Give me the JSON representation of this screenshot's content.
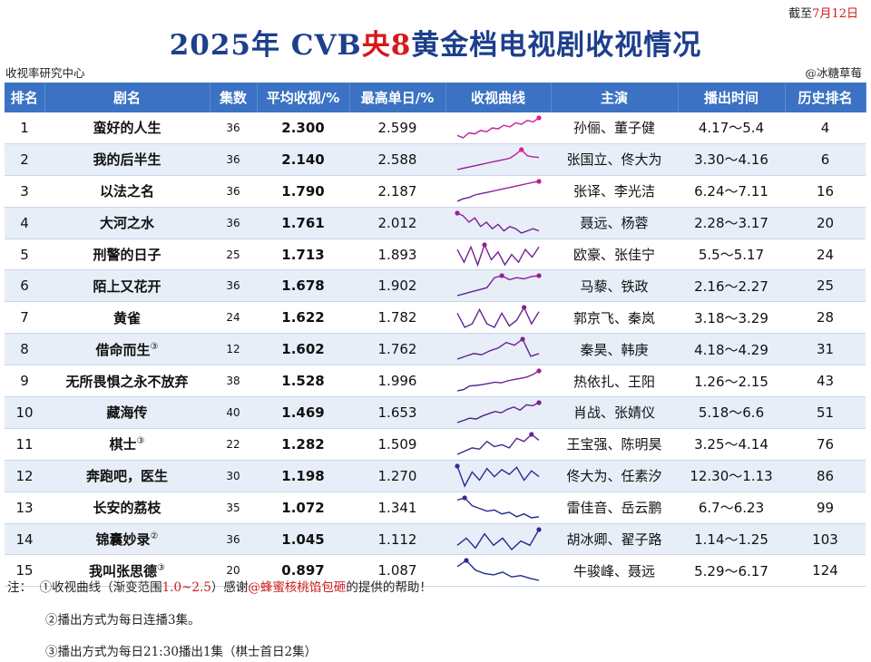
{
  "header": {
    "date_prefix": "截至",
    "date_value": "7月12日",
    "title_part1": "2025年 CVB",
    "title_part2": "央8",
    "title_part3": "黄金档电视剧收视情况",
    "source": "收视率研究中心",
    "credit": "@冰糖草莓"
  },
  "columns": [
    "排名",
    "剧名",
    "集数",
    "平均收视/%",
    "最高单日/%",
    "收视曲线",
    "主演",
    "播出时间",
    "历史排名"
  ],
  "colors": {
    "header_bg": "#3b72c4",
    "row_alt": "#e7eef8",
    "title_blue": "#1d3f8c",
    "accent_red": "#d7191c",
    "curve_high": "#e0189a",
    "curve_low": "#1a2a8a"
  },
  "rows": [
    {
      "rank": "1",
      "name": "蛮好的人生",
      "mark": "",
      "eps": "36",
      "avg": "2.300",
      "peak": "2.599",
      "cast": "孙俪、董子健",
      "time": "4.17～5.4",
      "hist": "4",
      "curve": [
        2.25,
        2.2,
        2.3,
        2.28,
        2.35,
        2.32,
        2.4,
        2.38,
        2.45,
        2.42,
        2.5,
        2.47,
        2.55,
        2.52,
        2.6
      ]
    },
    {
      "rank": "2",
      "name": "我的后半生",
      "mark": "",
      "eps": "36",
      "avg": "2.140",
      "peak": "2.588",
      "cast": "张国立、佟大为",
      "time": "3.30～4.16",
      "hist": "6",
      "curve": [
        1.8,
        1.85,
        1.9,
        1.95,
        2.0,
        2.05,
        2.1,
        2.15,
        2.2,
        2.25,
        2.4,
        2.59,
        2.35,
        2.3,
        2.28
      ]
    },
    {
      "rank": "3",
      "name": "以法之名",
      "mark": "",
      "eps": "36",
      "avg": "1.790",
      "peak": "2.187",
      "cast": "张译、李光洁",
      "time": "6.24～7.11",
      "hist": "16",
      "curve": [
        1.4,
        1.5,
        1.55,
        1.65,
        1.7,
        1.75,
        1.8,
        1.85,
        1.9,
        1.95,
        2.0,
        2.05,
        2.1,
        2.15,
        2.19
      ]
    },
    {
      "rank": "4",
      "name": "大河之水",
      "mark": "",
      "eps": "36",
      "avg": "1.761",
      "peak": "2.012",
      "cast": "聂远、杨蓉",
      "time": "2.28～3.17",
      "hist": "20",
      "curve": [
        2.01,
        1.95,
        1.8,
        1.9,
        1.7,
        1.8,
        1.65,
        1.75,
        1.6,
        1.7,
        1.65,
        1.55,
        1.6,
        1.65,
        1.6
      ]
    },
    {
      "rank": "5",
      "name": "刑警的日子",
      "mark": "",
      "eps": "25",
      "avg": "1.713",
      "peak": "1.893",
      "cast": "欧豪、张佳宁",
      "time": "5.5～5.17",
      "hist": "24",
      "curve": [
        1.8,
        1.55,
        1.85,
        1.5,
        1.89,
        1.6,
        1.75,
        1.5,
        1.7,
        1.55,
        1.8,
        1.65,
        1.85
      ]
    },
    {
      "rank": "6",
      "name": "陌上又花开",
      "mark": "",
      "eps": "36",
      "avg": "1.678",
      "peak": "1.902",
      "cast": "马藜、铁政",
      "time": "2.16～2.27",
      "hist": "25",
      "curve": [
        1.4,
        1.45,
        1.5,
        1.55,
        1.6,
        1.85,
        1.9,
        1.8,
        1.85,
        1.82,
        1.88,
        1.9
      ]
    },
    {
      "rank": "7",
      "name": "黄雀",
      "mark": "",
      "eps": "24",
      "avg": "1.622",
      "peak": "1.782",
      "cast": "郭京飞、秦岚",
      "time": "3.18～3.29",
      "hist": "28",
      "curve": [
        1.7,
        1.5,
        1.55,
        1.75,
        1.55,
        1.5,
        1.7,
        1.52,
        1.6,
        1.78,
        1.55,
        1.72
      ]
    },
    {
      "rank": "8",
      "name": "借命而生",
      "mark": "③",
      "eps": "12",
      "avg": "1.602",
      "peak": "1.762",
      "cast": "秦昊、韩庚",
      "time": "4.18～4.29",
      "hist": "31",
      "curve": [
        1.4,
        1.45,
        1.5,
        1.48,
        1.55,
        1.6,
        1.7,
        1.65,
        1.76,
        1.45,
        1.5
      ]
    },
    {
      "rank": "9",
      "name": "无所畏惧之永不放弃",
      "mark": "",
      "eps": "38",
      "avg": "1.528",
      "peak": "1.996",
      "cast": "热依扎、王阳",
      "time": "1.26～2.15",
      "hist": "43",
      "curve": [
        1.2,
        1.25,
        1.4,
        1.42,
        1.45,
        1.5,
        1.55,
        1.52,
        1.6,
        1.65,
        1.7,
        1.75,
        1.85,
        2.0
      ]
    },
    {
      "rank": "10",
      "name": "藏海传",
      "mark": "",
      "eps": "40",
      "avg": "1.469",
      "peak": "1.653",
      "cast": "肖战、张婧仪",
      "time": "5.18～6.6",
      "hist": "51",
      "curve": [
        1.2,
        1.25,
        1.3,
        1.28,
        1.35,
        1.4,
        1.45,
        1.42,
        1.5,
        1.55,
        1.48,
        1.6,
        1.58,
        1.65
      ]
    },
    {
      "rank": "11",
      "name": "棋士",
      "mark": "③",
      "eps": "22",
      "avg": "1.282",
      "peak": "1.509",
      "cast": "王宝强、陈明昊",
      "time": "3.25～4.14",
      "hist": "76",
      "curve": [
        1.2,
        1.25,
        1.3,
        1.28,
        1.4,
        1.32,
        1.35,
        1.3,
        1.45,
        1.4,
        1.51,
        1.42
      ]
    },
    {
      "rank": "12",
      "name": "奔跑吧，医生",
      "mark": "",
      "eps": "30",
      "avg": "1.198",
      "peak": "1.270",
      "cast": "佟大为、任素汐",
      "time": "12.30～1.13",
      "hist": "86",
      "curve": [
        1.27,
        1.1,
        1.22,
        1.15,
        1.25,
        1.18,
        1.24,
        1.2,
        1.26,
        1.15,
        1.23,
        1.18
      ]
    },
    {
      "rank": "13",
      "name": "长安的荔枝",
      "mark": "",
      "eps": "35",
      "avg": "1.072",
      "peak": "1.341",
      "cast": "雷佳音、岳云鹏",
      "time": "6.7～6.23",
      "hist": "99",
      "curve": [
        1.3,
        1.34,
        1.2,
        1.15,
        1.1,
        1.12,
        1.05,
        1.08,
        1.0,
        1.05,
        0.98,
        1.0
      ]
    },
    {
      "rank": "14",
      "name": "锦囊妙录",
      "mark": "②",
      "eps": "36",
      "avg": "1.045",
      "peak": "1.112",
      "cast": "胡冰卿、翟子路",
      "time": "1.14～1.25",
      "hist": "103",
      "curve": [
        1.0,
        1.05,
        0.98,
        1.08,
        1.0,
        1.05,
        0.97,
        1.03,
        1.0,
        1.11
      ]
    },
    {
      "rank": "15",
      "name": "我叫张思德",
      "mark": "③",
      "eps": "20",
      "avg": "0.897",
      "peak": "1.087",
      "cast": "牛骏峰、聂远",
      "time": "5.29～6.17",
      "hist": "124",
      "curve": [
        1.0,
        1.09,
        0.95,
        0.9,
        0.88,
        0.92,
        0.85,
        0.87,
        0.83,
        0.8
      ]
    }
  ],
  "notes": {
    "label": "注：",
    "n1_a": "①收视曲线（渐变范围",
    "n1_range": "1.0~2.5",
    "n1_b": "）感谢",
    "n1_name": "@蜂蜜核桃馅包砸",
    "n1_c": "的提供的帮助！",
    "n2": "②播出方式为每日连播3集。",
    "n3": "③播出方式为每日21:30播出1集（棋士首日2集）"
  }
}
